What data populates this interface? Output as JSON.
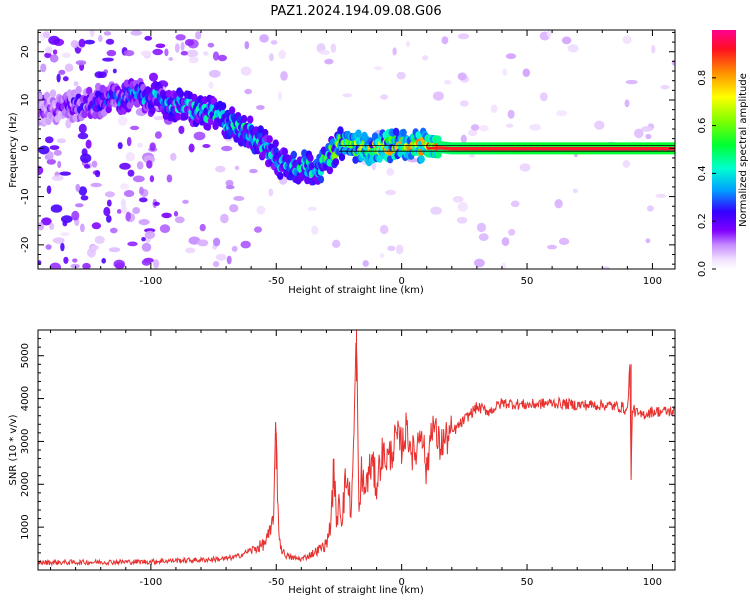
{
  "figure_title": "PAZ1.2024.194.09.08.G06",
  "chart_data": [
    {
      "type": "heatmap",
      "xlabel": "Height of straight line (km)",
      "ylabel": "Frequency (Hz)",
      "xlim": [
        -145,
        109
      ],
      "ylim": [
        -25,
        24.5
      ],
      "xticks": [
        -100,
        -50,
        0,
        50,
        100
      ],
      "yticks": [
        -20,
        -10,
        0,
        10,
        20
      ],
      "colorbar": {
        "label": "Normalized spectral amplitude",
        "ticks": [
          "0.0",
          "0.2",
          "0.4",
          "0.6",
          "0.8"
        ],
        "range": [
          0,
          1
        ],
        "colormap": "gist_rainbow_r"
      },
      "ridge": {
        "description_points_x": [
          -145,
          -105,
          -75,
          -60,
          -48,
          -40,
          -32,
          -25,
          -15,
          0,
          20,
          50,
          90,
          109
        ],
        "description_points_y": [
          8,
          11,
          7,
          3,
          -3,
          -4,
          -4,
          1,
          0,
          1,
          0,
          0,
          0,
          0
        ],
        "peak_amplitude": [
          0.15,
          0.35,
          0.45,
          0.45,
          0.4,
          0.5,
          0.5,
          0.6,
          0.7,
          0.75,
          0.9,
          0.95,
          0.95,
          0.95
        ]
      }
    },
    {
      "type": "line",
      "xlabel": "Height of straight line (km)",
      "ylabel": "SNR (10 * v/v)",
      "xlim": [
        -145,
        109
      ],
      "ylim": [
        0,
        5600
      ],
      "xticks": [
        -100,
        -50,
        0,
        50,
        100
      ],
      "yticks": [
        1000,
        2000,
        3000,
        4000,
        5000
      ],
      "color": "#e8312f",
      "series": [
        {
          "x": [
            -145,
            -120,
            -100,
            -90,
            -80,
            -70,
            -65,
            -60,
            -55,
            -52,
            -51,
            -50,
            -49,
            -48,
            -47,
            -45,
            -40,
            -35,
            -30,
            -28,
            -27,
            -26,
            -25,
            -24,
            -22,
            -20,
            -19,
            -18,
            -17,
            -16,
            -15,
            -12,
            -10,
            -8,
            -5,
            -2,
            0,
            2,
            5,
            8,
            10,
            12,
            15,
            20,
            25,
            30,
            35,
            40,
            50,
            60,
            70,
            80,
            88,
            90,
            91,
            91.5,
            92,
            93,
            95,
            100,
            109
          ],
          "values": [
            150,
            160,
            170,
            200,
            210,
            240,
            300,
            450,
            600,
            900,
            1500,
            3200,
            900,
            500,
            400,
            300,
            250,
            400,
            600,
            1200,
            2600,
            900,
            1800,
            1200,
            2200,
            1400,
            3200,
            5600,
            1000,
            2400,
            1800,
            2500,
            2000,
            2700,
            2600,
            3100,
            2900,
            3300,
            2600,
            3400,
            2200,
            3500,
            2900,
            3200,
            3500,
            3800,
            3700,
            3900,
            3850,
            3900,
            3850,
            3850,
            3800,
            3700,
            4800,
            2100,
            3800,
            3700,
            3600,
            3700,
            3700
          ]
        }
      ]
    }
  ]
}
